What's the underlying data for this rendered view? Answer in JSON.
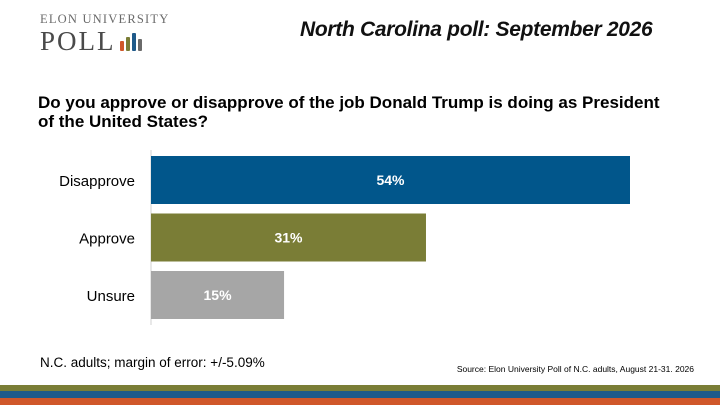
{
  "logo": {
    "line1": "ELON UNIVERSITY",
    "line2": "POLL",
    "bar_colors": [
      "#d0572a",
      "#7a7d36",
      "#1f5a8a",
      "#6a6a6a"
    ]
  },
  "header_title": "North Carolina poll: September 2026",
  "question": "Do you approve or disapprove of the job Donald Trump is doing as President of the United States?",
  "chart_data": {
    "type": "bar",
    "orientation": "horizontal",
    "categories": [
      "Disapprove",
      "Approve",
      "Unsure"
    ],
    "values": [
      54,
      31,
      15
    ],
    "value_labels": [
      "54%",
      "31%",
      "15%"
    ],
    "colors": [
      "#01568b",
      "#7a7d36",
      "#a6a6a6"
    ],
    "xlim": [
      0,
      54
    ],
    "grid": false
  },
  "footnote": "N.C. adults; margin of error: +/-5.09%",
  "source": "Source: Elon University Poll of N.C. adults, August 21-31. 2026",
  "stripe_colors": [
    "#7a7d36",
    "#1f5a8a",
    "#d0572a"
  ]
}
